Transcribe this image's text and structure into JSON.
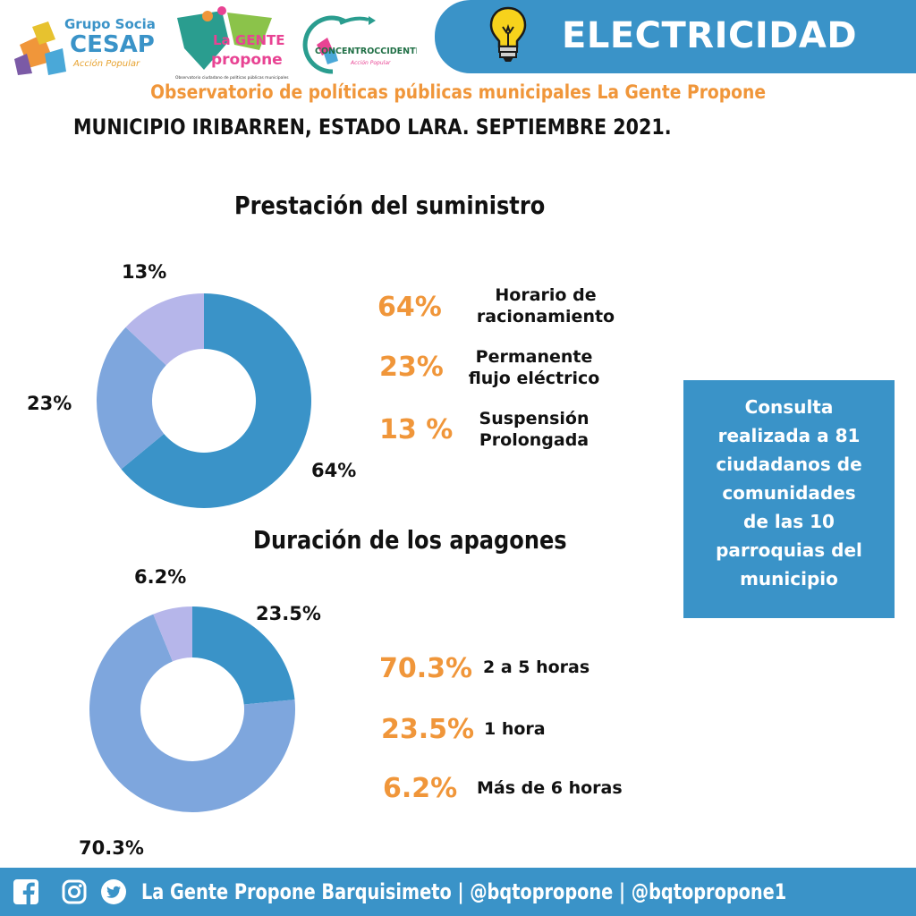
{
  "header": {
    "banner_title": "ELECTRICIDAD",
    "observatorio": "Observatorio de políticas públicas municipales La Gente Propone",
    "subtitle": "MUNICIPIO IRIBARREN, ESTADO LARA. SEPTIEMBRE 2021.",
    "logos": {
      "cesap_line1": "Grupo Social",
      "cesap_line2": "CESAP",
      "cesap_line3": "Acción Popular",
      "lgp_line1": "La GENTE",
      "lgp_line2": "propone",
      "lgp_line3": "Observatorio ciudadano de políticas públicas municipales",
      "concentro_line1": "CONCENTROCCIDENTE",
      "concentro_line2": "Acción Popular"
    },
    "icons": [
      "lightbulb-icon"
    ]
  },
  "colors": {
    "accent_blue": "#3a93c8",
    "orange": "#f0963a",
    "slice_dark_blue": "#3a93c8",
    "slice_light_blue": "#7ea6dd",
    "slice_lavender": "#b6b6ea"
  },
  "chart_data": [
    {
      "type": "pie",
      "title": "Prestación del suministro",
      "categories": [
        "Horario de racionamiento",
        "Permanente flujo eléctrico",
        "Suspensión Prolongada"
      ],
      "values": [
        64,
        23,
        13
      ],
      "data_labels": [
        "64%",
        "23%",
        "13%"
      ],
      "legend_values": [
        "64%",
        "23%",
        "13 %"
      ],
      "legend_lines": [
        [
          "Horario de",
          "racionamiento"
        ],
        [
          "Permanente",
          "flujo eléctrico"
        ],
        [
          "Suspensión",
          "Prolongada"
        ]
      ],
      "colors": [
        "#3a93c8",
        "#7ea6dd",
        "#b6b6ea"
      ],
      "legend_position": "right"
    },
    {
      "type": "pie",
      "title": "Duración de los apagones",
      "categories": [
        "1 hora",
        "2 a 5 horas",
        "Más de 6 horas"
      ],
      "values": [
        23.5,
        70.3,
        6.2
      ],
      "data_labels": [
        "23.5%",
        "70.3%",
        "6.2%"
      ],
      "colors": [
        "#3a93c8",
        "#7ea6dd",
        "#b6b6ea"
      ],
      "legend": [
        {
          "value": "70.3%",
          "label": "2 a 5 horas"
        },
        {
          "value": "23.5%",
          "label": "1 hora"
        },
        {
          "value": "6.2%",
          "label": "Más de 6 horas"
        }
      ],
      "legend_position": "right"
    }
  ],
  "info_box": {
    "lines": [
      "Consulta",
      "realizada a 81",
      "ciudadanos de",
      "comunidades",
      "de las 10",
      "parroquias del",
      "municipio"
    ]
  },
  "footer": {
    "text": "La Gente Propone Barquisimeto | @bqtopropone | @bqtopropone1",
    "icons": [
      "facebook-icon",
      "instagram-icon",
      "twitter-icon"
    ]
  }
}
